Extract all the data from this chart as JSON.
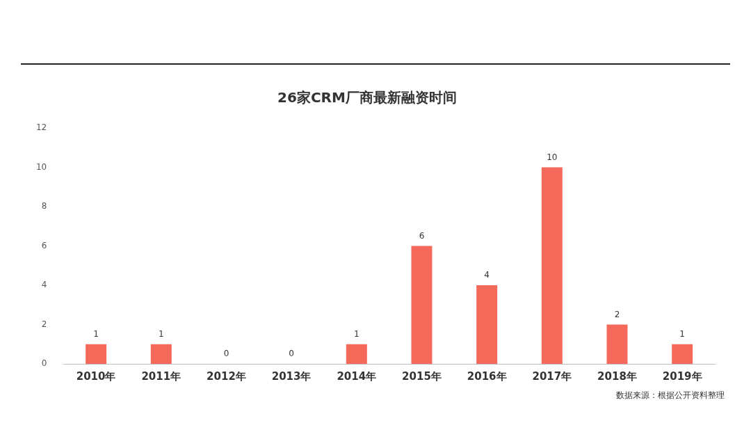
{
  "chart_data": {
    "type": "bar",
    "title": "26家CRM厂商最新融资时间",
    "categories": [
      "2010年",
      "2011年",
      "2012年",
      "2013年",
      "2014年",
      "2015年",
      "2016年",
      "2017年",
      "2018年",
      "2019年"
    ],
    "values": [
      1,
      1,
      0,
      0,
      1,
      6,
      4,
      10,
      2,
      1
    ],
    "color": "#f4695a",
    "ylim": [
      0,
      12
    ],
    "yticks": [
      0,
      2,
      4,
      6,
      8,
      10,
      12
    ],
    "grid": false,
    "legend": false,
    "data_labels": true,
    "annotations": [
      "数据来源：根据公开资料整理"
    ]
  }
}
